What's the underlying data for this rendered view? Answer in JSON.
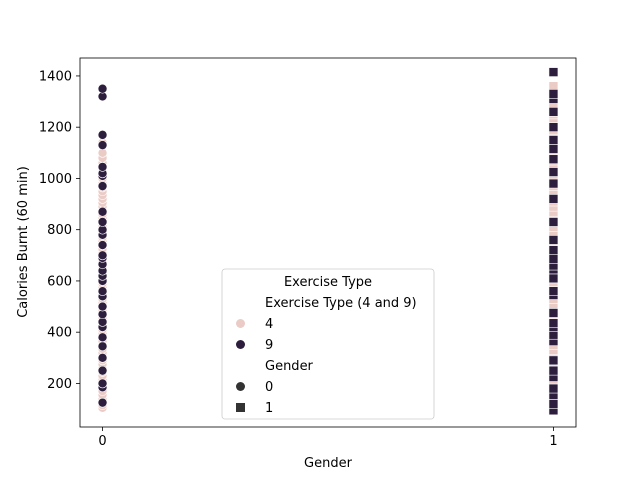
{
  "chart_data": {
    "type": "scatter",
    "xlabel": "Gender",
    "ylabel": "Calories Burnt (60 min)",
    "x_ticks": [
      "0",
      "1"
    ],
    "y_ticks": [
      200,
      400,
      600,
      800,
      1000,
      1200,
      1400
    ],
    "xlim": [
      -0.05,
      1.05
    ],
    "ylim": [
      30,
      1470
    ],
    "grid": false,
    "legend": {
      "placement": "lower-center",
      "title": "Exercise Type",
      "hue_header": "Exercise Type (4 and 9)",
      "hue_entries": [
        "4",
        "9"
      ],
      "style_header": "Gender",
      "style_entries": [
        "0",
        "1"
      ]
    },
    "colors": {
      "4": "#ebcbc6",
      "9": "#2d1e3e",
      "marker_edge": "#ffffff"
    },
    "markers": {
      "0": "circle",
      "1": "square"
    },
    "series": [
      {
        "exercise_type": "4",
        "gender": 0,
        "y": [
          105,
          115,
          125,
          140,
          155,
          170,
          185,
          200,
          215,
          230,
          245,
          260,
          275,
          290,
          305,
          320,
          335,
          350,
          365,
          380,
          395,
          410,
          425,
          440,
          455,
          470,
          485,
          500,
          515,
          530,
          545,
          560,
          575,
          590,
          605,
          620,
          635,
          650,
          665,
          680,
          695,
          710,
          725,
          740,
          755,
          770,
          785,
          800,
          815,
          830,
          845,
          860,
          875,
          890,
          905,
          920,
          935,
          950,
          965,
          980,
          1000,
          1020,
          1040,
          1060,
          1080,
          1100,
          1140,
          1170
        ]
      },
      {
        "exercise_type": "9",
        "gender": 0,
        "y": [
          125,
          185,
          200,
          250,
          300,
          345,
          380,
          420,
          440,
          470,
          500,
          540,
          560,
          600,
          620,
          640,
          665,
          690,
          700,
          740,
          780,
          800,
          830,
          870,
          970,
          1010,
          1020,
          1045,
          1130,
          1170,
          1320,
          1350
        ]
      },
      {
        "exercise_type": "4",
        "gender": 1,
        "y": [
          110,
          130,
          150,
          170,
          190,
          210,
          230,
          250,
          270,
          290,
          310,
          330,
          350,
          370,
          390,
          410,
          430,
          450,
          470,
          490,
          510,
          530,
          550,
          570,
          590,
          610,
          630,
          650,
          670,
          690,
          710,
          730,
          750,
          770,
          790,
          810,
          830,
          850,
          870,
          890,
          910,
          930,
          950,
          970,
          990,
          1010,
          1030,
          1050,
          1070,
          1090,
          1110,
          1130,
          1150,
          1170,
          1190,
          1210,
          1230,
          1250,
          1270,
          1290,
          1310,
          1330,
          1350,
          1360
        ]
      },
      {
        "exercise_type": "9",
        "gender": 1,
        "y": [
          95,
          120,
          155,
          180,
          225,
          250,
          290,
          365,
          390,
          420,
          435,
          475,
          545,
          560,
          610,
          645,
          660,
          685,
          720,
          760,
          830,
          920,
          980,
          1025,
          1075,
          1115,
          1150,
          1200,
          1260,
          1310,
          1330,
          1415
        ]
      }
    ]
  }
}
